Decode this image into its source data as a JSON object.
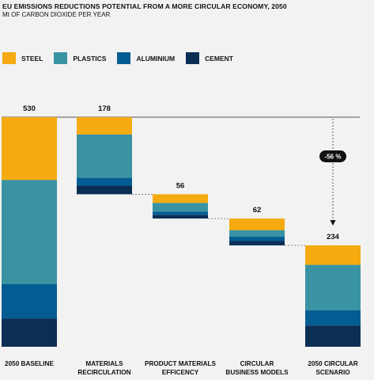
{
  "header": {
    "title": "EU EMISSIONS REDUCTIONS POTENTIAL FROM A MORE CIRCULAR ECONOMY, 2050",
    "subtitle": "Mt OF CARBON DIOXIDE PER YEAR"
  },
  "legend": [
    {
      "name": "STEEL",
      "color": "#f5aa0f"
    },
    {
      "name": "PLASTICS",
      "color": "#3a93a2"
    },
    {
      "name": "ALUMINIUM",
      "color": "#045d92"
    },
    {
      "name": "CEMENT",
      "color": "#0b2e55"
    }
  ],
  "chart_data": {
    "type": "bar",
    "subtype": "waterfall-stacked",
    "title": "EU EMISSIONS REDUCTIONS POTENTIAL FROM A MORE CIRCULAR ECONOMY, 2050",
    "ylabel": "Mt OF CARBON DIOXIDE PER YEAR",
    "categories": [
      [
        "2050 BASELINE"
      ],
      [
        "MATERIALS",
        "RECIRCULATION"
      ],
      [
        "PRODUCT MATERIALS",
        "EFFICENCY"
      ],
      [
        "CIRCULAR",
        "BUSINESS MODELS"
      ],
      [
        "2050 CIRCULAR",
        "SCENARIO"
      ]
    ],
    "totals": [
      530,
      178,
      56,
      62,
      234
    ],
    "total_labels": [
      "530",
      "178",
      "56",
      "62",
      "234"
    ],
    "series": [
      {
        "name": "STEEL",
        "values": [
          145,
          40,
          20,
          27,
          45
        ]
      },
      {
        "name": "PLASTICS",
        "values": [
          240,
          100,
          20,
          15,
          105
        ]
      },
      {
        "name": "ALUMINIUM",
        "values": [
          80,
          18,
          8,
          10,
          35
        ]
      },
      {
        "name": "CEMENT",
        "values": [
          65,
          20,
          8,
          10,
          49
        ]
      }
    ],
    "annotation": {
      "text": "-56 %"
    },
    "ylim": [
      0,
      530
    ]
  }
}
